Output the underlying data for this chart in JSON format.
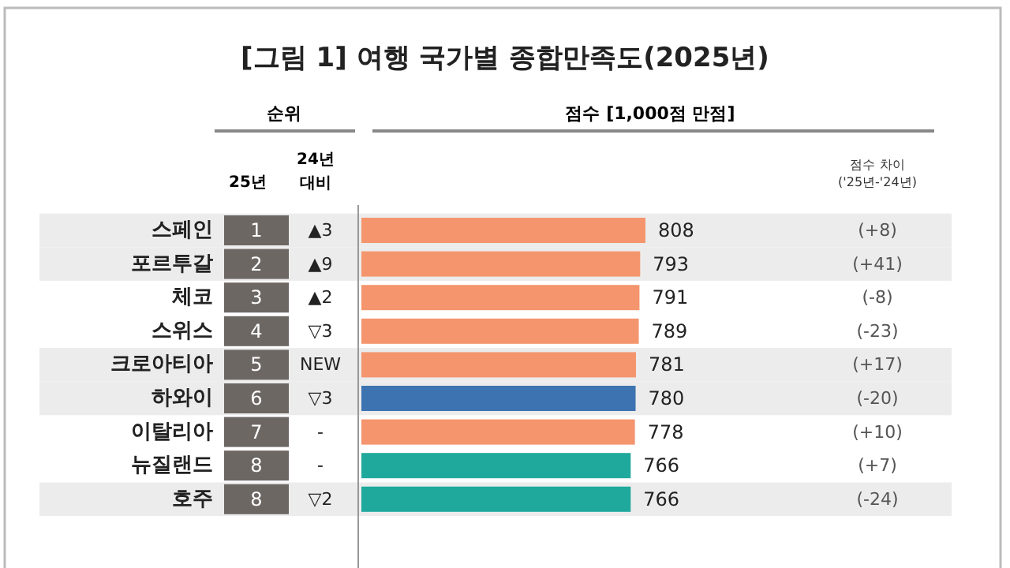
{
  "chart_data": {
    "type": "bar",
    "orientation": "horizontal",
    "title": "[그림 1] 여행 국가별 종합만족도(2025년)",
    "categories": [
      "스페인",
      "포르투갈",
      "체코",
      "스위스",
      "크로아티아",
      "하와이",
      "이탈리아",
      "뉴질랜드",
      "호주"
    ],
    "values": [
      808,
      793,
      791,
      789,
      781,
      780,
      778,
      766,
      766
    ],
    "colors": [
      "#f4956e",
      "#f4956e",
      "#f4956e",
      "#f4956e",
      "#f4956e",
      "#3c73b0",
      "#f4956e",
      "#1fa99d",
      "#1fa99d"
    ],
    "data_labels": true,
    "annotations": [
      "순위",
      "25년",
      "24년 대비",
      "점수 [1,000점 만점]",
      "점수 차이 ('25년-'24년)",
      "1",
      "2",
      "3",
      "4",
      "5",
      "6",
      "7",
      "8",
      "8",
      "▲3",
      "▲9",
      "▲2",
      "▽3",
      "NEW",
      "▽3",
      "-",
      "-",
      "▽2",
      "(+8)",
      "(+41)",
      "(-8)",
      "(-23)",
      "(+17)",
      "(-20)",
      "(+10)",
      "(+7)",
      "(-24)"
    ]
  }
}
